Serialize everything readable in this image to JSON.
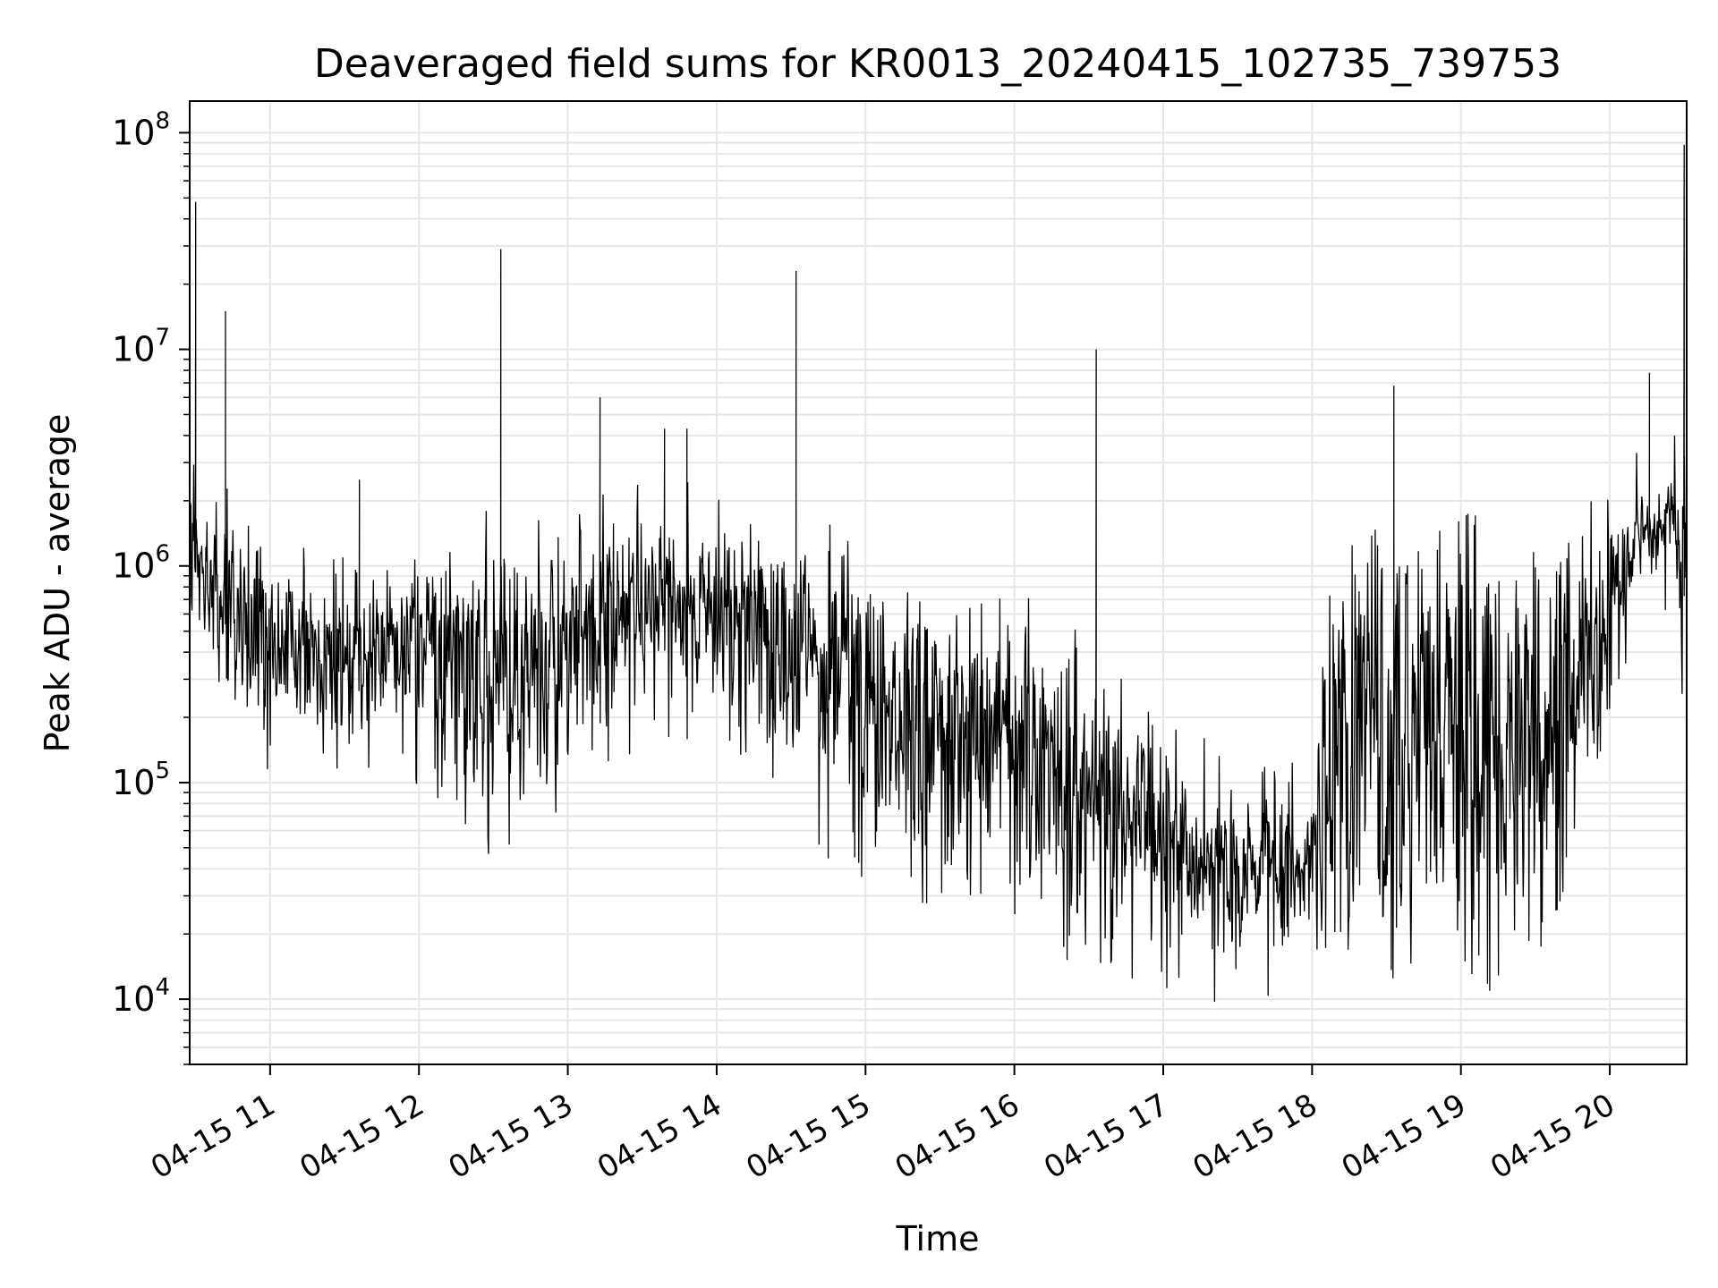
{
  "chart_data": {
    "type": "line",
    "title": "Deaveraged field sums for KR0013_20240415_102735_739753",
    "xlabel": "Time",
    "ylabel": "Peak ADU - average",
    "x_range": [
      "2024-04-15 10:27:35",
      "2024-04-15 20:31:00"
    ],
    "x_ticks": [
      {
        "value": "2024-04-15 11:00",
        "label": "04-15 11"
      },
      {
        "value": "2024-04-15 12:00",
        "label": "04-15 12"
      },
      {
        "value": "2024-04-15 13:00",
        "label": "04-15 13"
      },
      {
        "value": "2024-04-15 14:00",
        "label": "04-15 14"
      },
      {
        "value": "2024-04-15 15:00",
        "label": "04-15 15"
      },
      {
        "value": "2024-04-15 16:00",
        "label": "04-15 16"
      },
      {
        "value": "2024-04-15 17:00",
        "label": "04-15 17"
      },
      {
        "value": "2024-04-15 18:00",
        "label": "04-15 18"
      },
      {
        "value": "2024-04-15 19:00",
        "label": "04-15 19"
      },
      {
        "value": "2024-04-15 20:00",
        "label": "04-15 20"
      }
    ],
    "y_scale": "log",
    "ylim": [
      5000,
      140000000
    ],
    "y_ticks": [
      {
        "value": 10000,
        "base": "10",
        "exp": "4"
      },
      {
        "value": 100000,
        "base": "10",
        "exp": "5"
      },
      {
        "value": 1000000,
        "base": "10",
        "exp": "6"
      },
      {
        "value": 10000000,
        "base": "10",
        "exp": "7"
      },
      {
        "value": 100000000,
        "base": "10",
        "exp": "8"
      }
    ],
    "grid": true,
    "line_color": "#000000",
    "series": [
      {
        "x": [
          "2024-04-15 10:28",
          "2024-04-15 10:40",
          "2024-04-15 10:55",
          "2024-04-15 11:10",
          "2024-04-15 11:25",
          "2024-04-15 11:40",
          "2024-04-15 11:55",
          "2024-04-15 12:10",
          "2024-04-15 12:25",
          "2024-04-15 12:40",
          "2024-04-15 12:55",
          "2024-04-15 13:10",
          "2024-04-15 13:25",
          "2024-04-15 13:40",
          "2024-04-15 13:55",
          "2024-04-15 14:10",
          "2024-04-15 14:25",
          "2024-04-15 14:40",
          "2024-04-15 14:55",
          "2024-04-15 15:10",
          "2024-04-15 15:25",
          "2024-04-15 15:40",
          "2024-04-15 15:55",
          "2024-04-15 16:10",
          "2024-04-15 16:25",
          "2024-04-15 16:40",
          "2024-04-15 16:55",
          "2024-04-15 17:10",
          "2024-04-15 17:25",
          "2024-04-15 17:40",
          "2024-04-15 17:55",
          "2024-04-15 18:10",
          "2024-04-15 18:25",
          "2024-04-15 18:40",
          "2024-04-15 18:55",
          "2024-04-15 19:10",
          "2024-04-15 19:25",
          "2024-04-15 19:40",
          "2024-04-15 19:55",
          "2024-04-15 20:10",
          "2024-04-15 20:25",
          "2024-04-15 20:30"
        ],
        "y_low": [
          500000,
          300000,
          150000,
          200000,
          150000,
          180000,
          200000,
          80000,
          70000,
          80000,
          100000,
          150000,
          200000,
          250000,
          250000,
          200000,
          150000,
          70000,
          60000,
          50000,
          40000,
          40000,
          40000,
          30000,
          22000,
          20000,
          16000,
          15000,
          15000,
          15000,
          16000,
          16000,
          17000,
          16000,
          16000,
          17000,
          18000,
          30000,
          100000,
          800000,
          1000000,
          250000
        ],
        "y_high": [
          2000000,
          1500000,
          1000000,
          800000,
          700000,
          700000,
          800000,
          1000000,
          1100000,
          1100000,
          1100000,
          1200000,
          1400000,
          1400000,
          1400000,
          1300000,
          1200000,
          1000000,
          700000,
          700000,
          500000,
          400000,
          400000,
          400000,
          300000,
          200000,
          150000,
          100000,
          80000,
          80000,
          80000,
          900000,
          1000000,
          1000000,
          1000000,
          1000000,
          1000000,
          1300000,
          1400000,
          2000000,
          2500000,
          2000000
        ],
        "spikes": [
          {
            "x": "2024-04-15 10:30",
            "y": 48000000
          },
          {
            "x": "2024-04-15 10:42",
            "y": 15000000
          },
          {
            "x": "2024-04-15 11:36",
            "y": 2500000
          },
          {
            "x": "2024-04-15 12:33",
            "y": 29000000
          },
          {
            "x": "2024-04-15 13:13",
            "y": 6000000
          },
          {
            "x": "2024-04-15 13:39",
            "y": 4300000
          },
          {
            "x": "2024-04-15 13:48",
            "y": 4300000
          },
          {
            "x": "2024-04-15 14:32",
            "y": 23000000
          },
          {
            "x": "2024-04-15 16:33",
            "y": 10000000
          },
          {
            "x": "2024-04-15 18:33",
            "y": 6800000
          },
          {
            "x": "2024-04-15 20:16",
            "y": 7800000
          },
          {
            "x": "2024-04-15 20:30",
            "y": 88000000
          }
        ]
      }
    ]
  }
}
